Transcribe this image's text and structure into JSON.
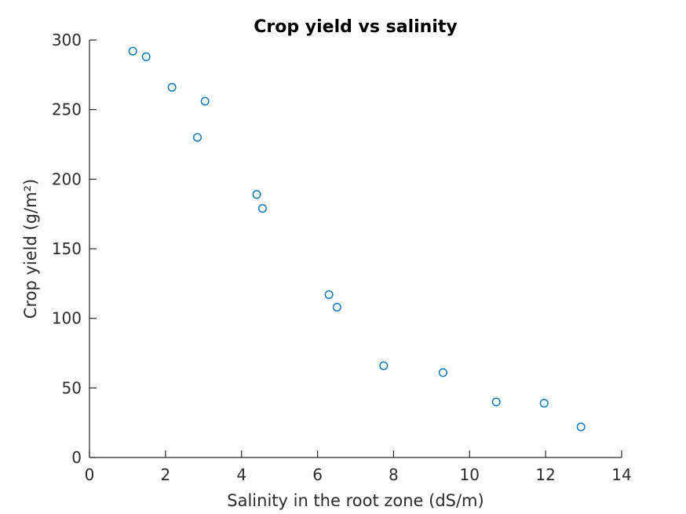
{
  "chart_data": {
    "type": "scatter",
    "title": "Crop yield vs salinity",
    "xlabel": "Salinity in the root zone (dS/m)",
    "ylabel": "Crop yield (g/m²)",
    "x": [
      1.14,
      1.49,
      2.17,
      2.84,
      3.04,
      4.4,
      4.55,
      6.3,
      6.51,
      7.74,
      9.3,
      10.7,
      11.96,
      12.93
    ],
    "y": [
      292,
      288,
      266,
      230,
      256,
      189,
      179,
      117,
      108,
      66,
      61,
      40,
      39,
      22
    ],
    "xlim": [
      0,
      14
    ],
    "ylim": [
      0,
      300
    ],
    "xticks": [
      0,
      2,
      4,
      6,
      8,
      10,
      12,
      14
    ],
    "yticks": [
      0,
      50,
      100,
      150,
      200,
      250,
      300
    ],
    "grid": false,
    "legend": null,
    "tick_direction": "in",
    "marker": {
      "shape": "open-circle",
      "edge_color": "#0072BD",
      "fill": "none"
    },
    "axis_color": "#262626",
    "tick_label_color": "#2b2b2b",
    "title_color": "#000000",
    "background_color": "#ffffff"
  }
}
